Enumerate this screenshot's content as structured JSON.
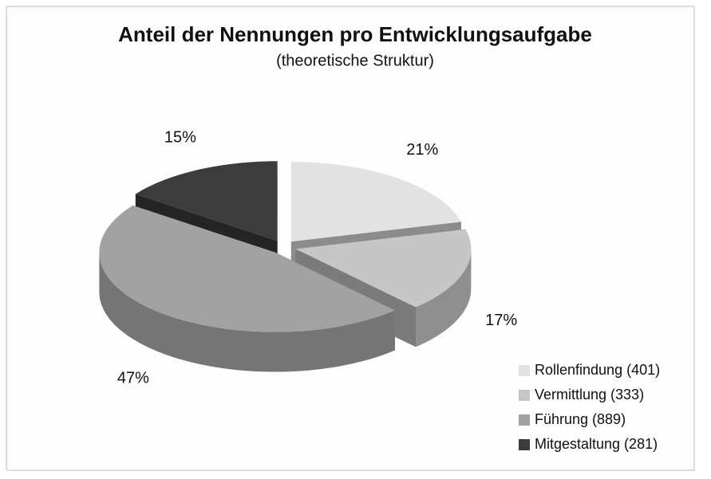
{
  "chart_data": {
    "type": "pie3d",
    "title": "Anteil der Nennungen pro Entwicklungsaufgabe",
    "subtitle": "(theoretische Struktur)",
    "categories": [
      "Rollenfindung (401)",
      "Vermittlung (333)",
      "Führung (889)",
      "Mitgestaltung (281)"
    ],
    "values": [
      21,
      17,
      47,
      15
    ],
    "value_labels": [
      "21%",
      "17%",
      "47%",
      "15%"
    ],
    "colors": [
      "#e2e2e2",
      "#c6c6c6",
      "#a2a2a2",
      "#3c3c3c"
    ],
    "legend": "lower right"
  }
}
